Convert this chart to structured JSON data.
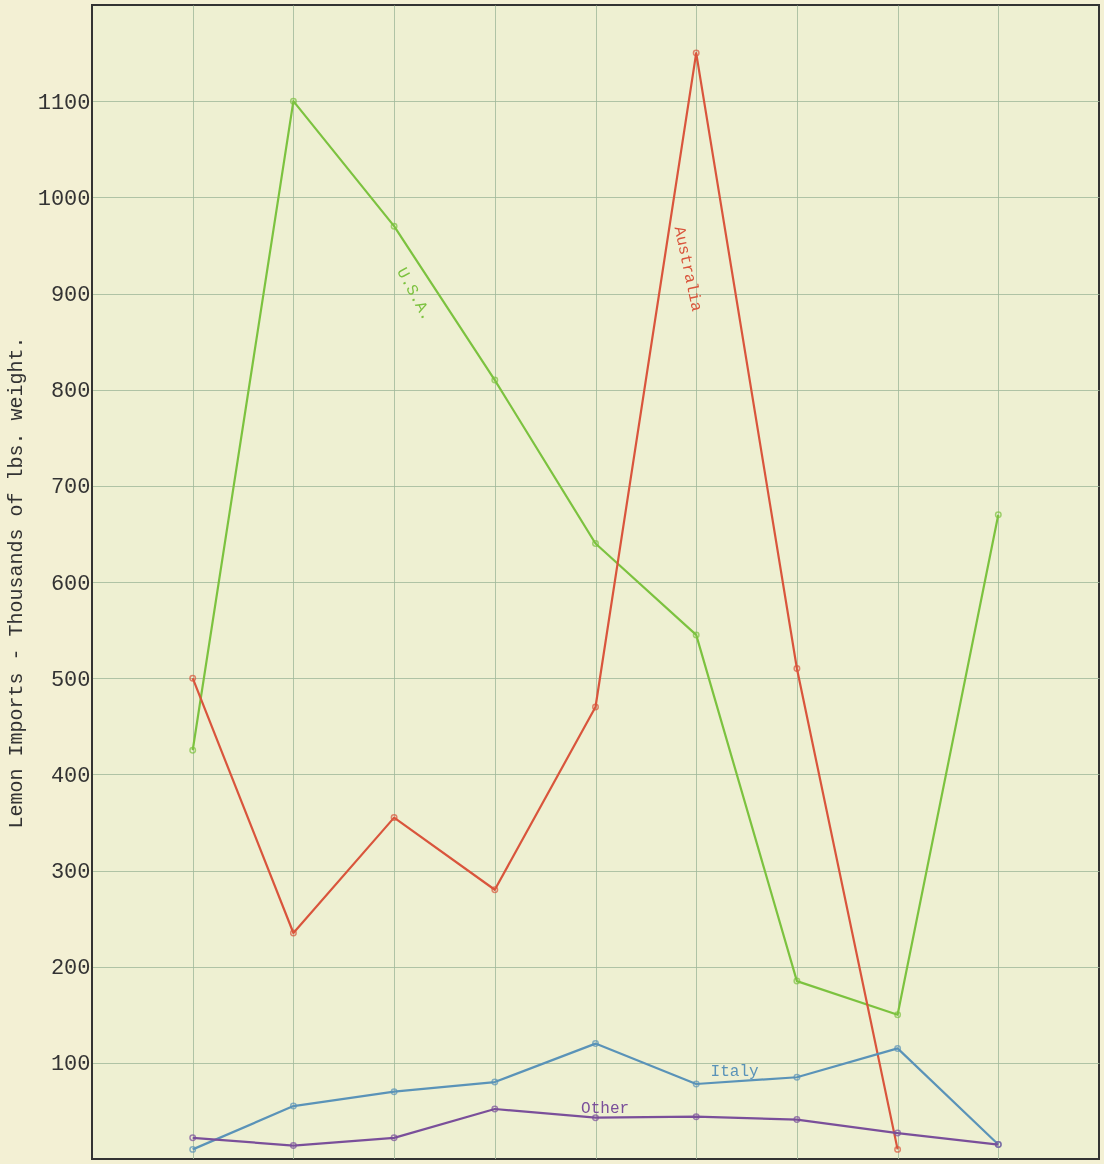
{
  "chart_data": {
    "type": "line",
    "ylabel": "Lemon Imports - Thousands of lbs. weight.",
    "categories": [
      null,
      null,
      null,
      null,
      null,
      null,
      null,
      null,
      null
    ],
    "series": [
      {
        "name": "U.S.A.",
        "color": "#7cc23f",
        "values": [
          425,
          1100,
          970,
          810,
          640,
          545,
          185,
          150,
          670
        ]
      },
      {
        "name": "Australia",
        "color": "#d9553c",
        "values": [
          500,
          235,
          355,
          280,
          470,
          1150,
          510,
          10,
          null
        ]
      },
      {
        "name": "Italy",
        "color": "#5a93b8",
        "values": [
          10,
          55,
          70,
          80,
          120,
          78,
          85,
          115,
          15
        ]
      },
      {
        "name": "Other",
        "color": "#7a4f9a",
        "values": [
          22,
          14,
          22,
          52,
          43,
          44,
          41,
          27,
          15
        ]
      }
    ],
    "ylim": [
      0,
      1200
    ],
    "yticks": [
      100,
      200,
      300,
      400,
      500,
      600,
      700,
      800,
      900,
      1000,
      1100
    ],
    "grid": true,
    "marker": "circle",
    "line_style": "solid",
    "tick_labels": "y"
  }
}
